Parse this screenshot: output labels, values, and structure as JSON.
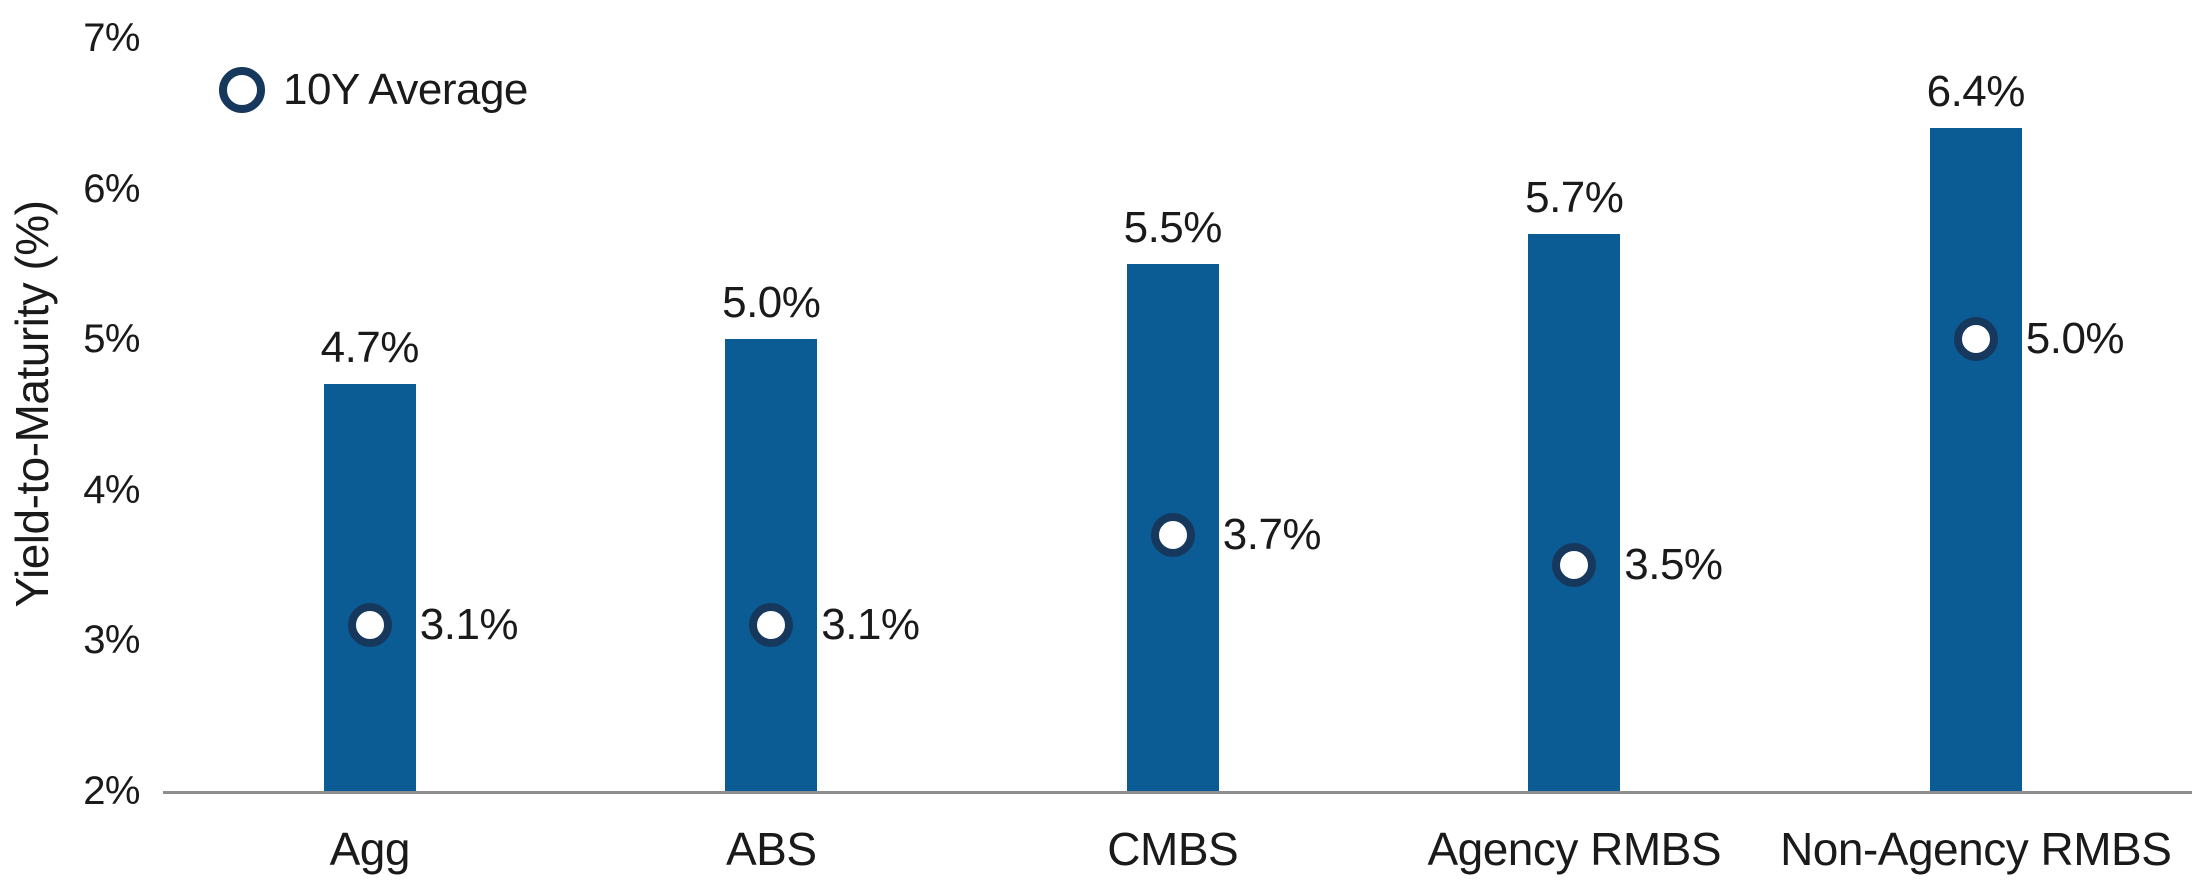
{
  "colors": {
    "bar": "#0B5C94",
    "marker_ring": "#16385C",
    "marker_fill": "#FFFFFF",
    "axis_line": "#8E8E8E",
    "text": "#1A1A1A",
    "background": "#FFFFFF"
  },
  "legend": {
    "label": "10Y Average",
    "position": "top-left"
  },
  "chart_data": {
    "type": "bar",
    "title": "",
    "xlabel": "",
    "ylabel": "Yield-to-Maturity (%)",
    "ylim": [
      2,
      7
    ],
    "grid": false,
    "legend_position": "top-left",
    "categories": [
      "Agg",
      "ABS",
      "CMBS",
      "Agency RMBS",
      "Non-Agency RMBS"
    ],
    "yticks": [
      {
        "value": 2,
        "label": "2%"
      },
      {
        "value": 3,
        "label": "3%"
      },
      {
        "value": 4,
        "label": "4%"
      },
      {
        "value": 5,
        "label": "5%"
      },
      {
        "value": 6,
        "label": "6%"
      },
      {
        "value": 7,
        "label": "7%"
      }
    ],
    "series": [
      {
        "name": "Yield-to-Maturity",
        "type": "bar",
        "values": [
          4.7,
          5.0,
          5.5,
          5.7,
          6.4
        ],
        "labels": [
          "4.7%",
          "5.0%",
          "5.5%",
          "5.7%",
          "6.4%"
        ]
      },
      {
        "name": "10Y Average",
        "type": "scatter",
        "values": [
          3.1,
          3.1,
          3.7,
          3.5,
          5.0
        ],
        "labels": [
          "3.1%",
          "3.1%",
          "3.7%",
          "3.5%",
          "5.0%"
        ]
      }
    ]
  }
}
